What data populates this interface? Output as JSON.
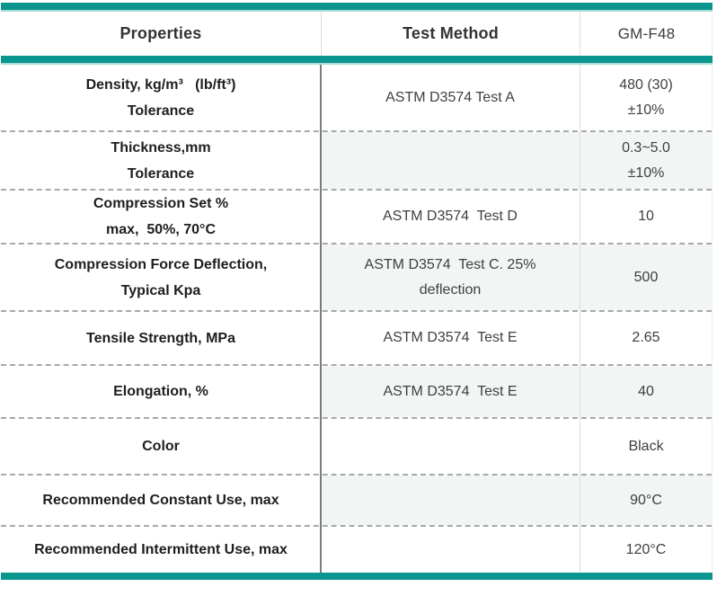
{
  "table": {
    "headers": [
      "Properties",
      "Test Method",
      "GM-F48"
    ],
    "rows": [
      {
        "property": [
          "Density, kg/m³   (lb/ft³)",
          "Tolerance"
        ],
        "method": [
          "ASTM D3574 Test A"
        ],
        "value": [
          "480 (30)",
          "±10%"
        ]
      },
      {
        "property": [
          "Thickness,mm",
          "Tolerance"
        ],
        "method": [],
        "value": [
          "0.3~5.0",
          "±10%"
        ]
      },
      {
        "property": [
          "Compression Set %",
          "max,  50%, 70°C"
        ],
        "method": [
          "ASTM D3574  Test D"
        ],
        "value": [
          "10"
        ]
      },
      {
        "property": [
          "Compression Force Deflection,",
          "Typical Kpa"
        ],
        "method": [
          "ASTM D3574  Test C. 25%",
          "deflection"
        ],
        "value": [
          "500"
        ]
      },
      {
        "property": [
          "Tensile Strength, MPa"
        ],
        "method": [
          "ASTM D3574  Test E"
        ],
        "value": [
          "2.65"
        ]
      },
      {
        "property": [
          "Elongation, %"
        ],
        "method": [
          "ASTM D3574  Test E"
        ],
        "value": [
          "40"
        ]
      },
      {
        "property": [
          "Color"
        ],
        "method": [],
        "value": [
          "Black"
        ]
      },
      {
        "property": [
          "Recommended Constant Use, max"
        ],
        "method": [],
        "value": [
          "90°C"
        ]
      },
      {
        "property": [
          "Recommended Intermittent Use, max"
        ],
        "method": [],
        "value": [
          "120°C"
        ]
      }
    ],
    "colors": {
      "accent_teal": "#0a968e",
      "accent_teal_light": "#aadbd6",
      "row_tint": "#f1f5f4",
      "dashed_divider": "#a9a9a9",
      "dark_divider": "#7b7b7b"
    }
  }
}
